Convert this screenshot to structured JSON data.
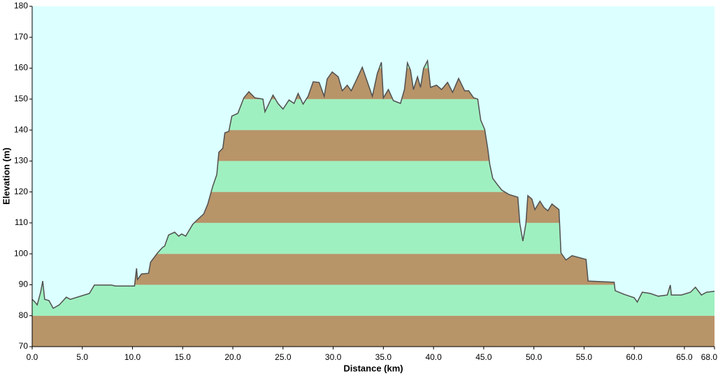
{
  "chart_data": {
    "type": "area",
    "xlabel": "Distance  (km)",
    "ylabel": "Elevation (m)",
    "x": [
      0,
      0.28,
      0.5,
      0.84,
      1.05,
      1.25,
      1.67,
      2.1,
      2.7,
      3.4,
      3.8,
      5.7,
      6.2,
      7.9,
      8.3,
      10.2,
      10.4,
      10.5,
      10.9,
      11.6,
      11.8,
      12.5,
      13,
      13.2,
      13.6,
      14.2,
      14.6,
      14.9,
      15.3,
      16,
      16.5,
      17.1,
      17.5,
      18,
      18.4,
      18.6,
      19,
      19.2,
      19.6,
      19.9,
      20.5,
      21.1,
      21.6,
      22.2,
      23,
      23.2,
      24,
      24.5,
      25,
      25.6,
      26.1,
      26.5,
      27,
      27.5,
      28,
      28.6,
      29.1,
      29.4,
      29.9,
      30.5,
      30.9,
      31.4,
      31.8,
      32.3,
      32.9,
      33.4,
      33.9,
      34.4,
      34.8,
      35,
      35.5,
      36,
      36.7,
      37.1,
      37.4,
      37.7,
      38,
      38.4,
      38.7,
      39,
      39.4,
      39.7,
      40.3,
      40.8,
      41.4,
      41.9,
      42.5,
      43.1,
      43.5,
      44,
      44.4,
      44.7,
      45.1,
      45.4,
      45.6,
      45.9,
      46.4,
      46.8,
      47.5,
      48.4,
      48.6,
      48.9,
      49.2,
      49.4,
      49.8,
      50.1,
      50.6,
      51,
      51.4,
      51.8,
      52.5,
      52.7,
      53.2,
      53.8,
      55.2,
      55.4,
      58,
      58.1,
      59,
      60,
      60.3,
      60.8,
      61.6,
      62.4,
      63.3,
      63.6,
      63.7,
      64.7,
      65.6,
      66.1,
      66.7,
      67.2,
      68
    ],
    "values": [
      85.3,
      84.4,
      83.5,
      87.6,
      91.2,
      85.3,
      84.9,
      82.4,
      83.5,
      86,
      85.3,
      87.2,
      89.9,
      89.9,
      89.6,
      89.6,
      95.3,
      91.7,
      93.5,
      93.7,
      97.3,
      100.3,
      102.1,
      102.5,
      106.1,
      107,
      105.7,
      106.4,
      105.7,
      109.5,
      111.1,
      112.9,
      116.1,
      121.9,
      125.6,
      132.8,
      134.1,
      139.1,
      139.6,
      144.5,
      145.4,
      150.4,
      152.4,
      150.4,
      150,
      145.9,
      151.3,
      148.6,
      146.8,
      149.7,
      148.6,
      151.8,
      148.4,
      150.9,
      155.6,
      155.4,
      150.9,
      156.5,
      158.8,
      157.2,
      152.7,
      154.5,
      152.7,
      156.1,
      160.3,
      155.6,
      150.9,
      158.3,
      161.9,
      150.4,
      153.1,
      149.5,
      148.6,
      153.1,
      161.7,
      159.4,
      153.1,
      157.2,
      153.8,
      159.9,
      162.4,
      153.8,
      154.5,
      153.1,
      155.4,
      152.2,
      156.7,
      152.7,
      152.7,
      150.4,
      150,
      143.2,
      140.2,
      134.1,
      129,
      124.4,
      122.2,
      120.6,
      119.2,
      118.3,
      109.7,
      104.1,
      109.7,
      118.8,
      117.7,
      114.3,
      117,
      115,
      113.9,
      116.1,
      114.3,
      100.3,
      98,
      99.4,
      98.2,
      91.2,
      90.8,
      88.1,
      86.9,
      85.8,
      84.4,
      87.6,
      87.2,
      86.3,
      86.7,
      89.9,
      86.7,
      86.7,
      87.6,
      89.2,
      86.7,
      87.6,
      87.9
    ],
    "xlim": [
      0,
      68
    ],
    "ylim": [
      70,
      180
    ],
    "xticks": [
      {
        "value": 0,
        "label": "0.0"
      },
      {
        "value": 5,
        "label": "5.0"
      },
      {
        "value": 10,
        "label": "10.0"
      },
      {
        "value": 15,
        "label": "15.0"
      },
      {
        "value": 20,
        "label": "20.0"
      },
      {
        "value": 25,
        "label": "25.0"
      },
      {
        "value": 30,
        "label": "30.0"
      },
      {
        "value": 35,
        "label": "35.0"
      },
      {
        "value": 40,
        "label": "40.0"
      },
      {
        "value": 45,
        "label": "45.0"
      },
      {
        "value": 50,
        "label": "50.0"
      },
      {
        "value": 55,
        "label": "55.0"
      },
      {
        "value": 60,
        "label": "60.0"
      },
      {
        "value": 65,
        "label": "65.0"
      },
      {
        "value": 68,
        "label": "68.0"
      }
    ],
    "yticks": [
      70,
      80,
      90,
      100,
      110,
      120,
      130,
      140,
      150,
      160,
      170,
      180
    ],
    "color": "#505050",
    "band_colors": [
      "#b89469",
      "#9ff0c0"
    ],
    "background": "#dcffff"
  }
}
